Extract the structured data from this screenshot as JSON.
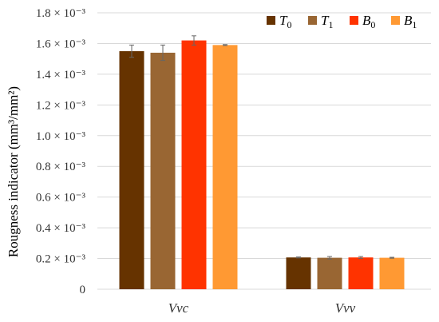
{
  "chart_data": {
    "type": "bar",
    "ylabel": "Rougness indicator (mm³/mm²)",
    "ylim": [
      0,
      0.0018
    ],
    "y_ticks": [
      {
        "value": 0,
        "label": "0"
      },
      {
        "value": 0.0002,
        "label": "0.2 × 10⁻³"
      },
      {
        "value": 0.0004,
        "label": "0.4 × 10⁻³"
      },
      {
        "value": 0.0006,
        "label": "0.6 × 10⁻³"
      },
      {
        "value": 0.0008,
        "label": "0.8 × 10⁻³"
      },
      {
        "value": 0.001,
        "label": "1.0 × 10⁻³"
      },
      {
        "value": 0.0012,
        "label": "1.2 × 10⁻³"
      },
      {
        "value": 0.0014,
        "label": "1.4 × 10⁻³"
      },
      {
        "value": 0.0016,
        "label": "1.6 × 10⁻³"
      },
      {
        "value": 0.0018,
        "label": "1.8 × 10⁻³"
      }
    ],
    "categories": [
      "Vvc",
      "Vvv"
    ],
    "series": [
      {
        "name": "T0",
        "base": "T",
        "sub": "0",
        "color": "#663300",
        "values": [
          0.00155,
          0.000207
        ],
        "errors": [
          4e-05,
          3e-06
        ]
      },
      {
        "name": "T1",
        "base": "T",
        "sub": "1",
        "color": "#996633",
        "values": [
          0.00154,
          0.000205
        ],
        "errors": [
          5e-05,
          8e-06
        ]
      },
      {
        "name": "B0",
        "base": "B",
        "sub": "0",
        "color": "#ff3300",
        "values": [
          0.00162,
          0.000207
        ],
        "errors": [
          3e-05,
          6e-06
        ]
      },
      {
        "name": "B1",
        "base": "B",
        "sub": "1",
        "color": "#ff9933",
        "values": [
          0.00159,
          0.000205
        ],
        "errors": [
          3e-06,
          3e-06
        ]
      }
    ],
    "grid": true,
    "legend_position": "top-right"
  }
}
